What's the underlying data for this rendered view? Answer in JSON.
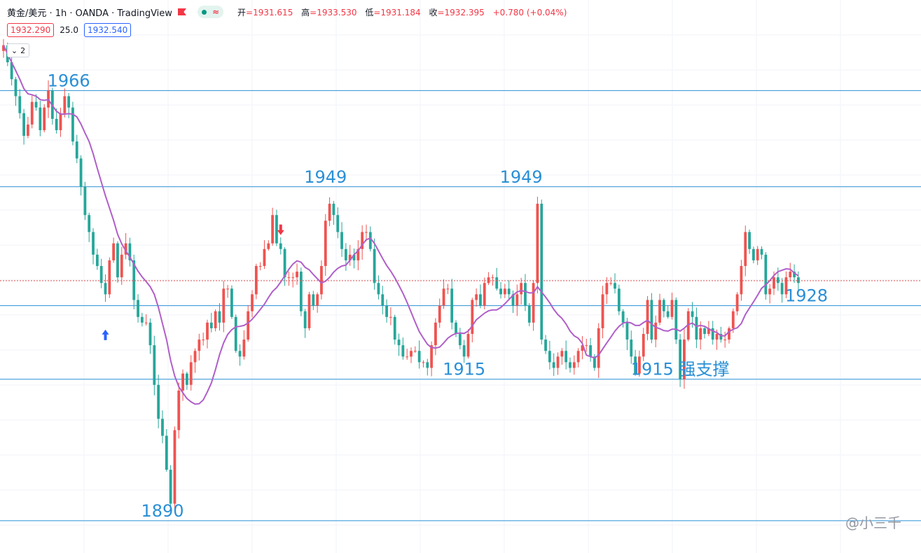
{
  "legend": {
    "symbol": "黄金/美元 · 1h · OANDA · TradingView",
    "wave_icon": "≈",
    "open_label": "开",
    "open": "=1931.615",
    "high_label": "高",
    "high": "=1933.530",
    "low_label": "低",
    "low": "=1931.184",
    "close_label": "收",
    "close": "=1932.395",
    "change": "+0.780 (+0.04%)"
  },
  "quote": {
    "sell": "1932.290",
    "spread": "25.0",
    "buy": "1932.540"
  },
  "indicator_toggle": "2",
  "watermark": "@小三千",
  "colors": {
    "up": "#ef5350",
    "down": "#26a69a",
    "ma": "#b05fc9",
    "level": "#2a8fd6",
    "last_price": "#e05050"
  },
  "chart_data": {
    "type": "candlestick",
    "timeframe": "1h",
    "y_range": [
      1888,
      1982
    ],
    "levels": [
      1966,
      1949,
      1928,
      1915,
      1890
    ],
    "level_labels": [
      {
        "text": "1966",
        "price": 1966,
        "bar": 16
      },
      {
        "text": "1949",
        "price": 1949,
        "bar": 79
      },
      {
        "text": "1949",
        "price": 1949,
        "bar": 127
      },
      {
        "text": "1928",
        "price": 1928,
        "bar": 197
      },
      {
        "text": "1915",
        "price": 1915,
        "bar": 113
      },
      {
        "text": "1915 强支撑",
        "price": 1915,
        "bar": 166
      },
      {
        "text": "1890",
        "price": 1890,
        "bar": 39
      }
    ],
    "last_price": 1932.4,
    "path": [
      1974,
      1971,
      1968,
      1965,
      1962,
      1958,
      1960,
      1964,
      1963,
      1959,
      1963,
      1966,
      1961,
      1959,
      1962,
      1965,
      1963,
      1957,
      1954,
      1949,
      1944,
      1941,
      1937,
      1935,
      1932,
      1930,
      1936,
      1939,
      1933,
      1937,
      1939,
      1936,
      1929,
      1926,
      1925,
      1925,
      1921,
      1914,
      1908,
      1905,
      1899,
      1893,
      1906,
      1913,
      1916,
      1914,
      1918,
      1920,
      1922,
      1922,
      1925,
      1924,
      1927,
      1925,
      1931,
      1931,
      1926,
      1920,
      1919,
      1922,
      1927,
      1930,
      1935,
      1935,
      1938,
      1939,
      1944,
      1939,
      1938,
      1933,
      1933,
      1933,
      1934,
      1927,
      1924,
      1930,
      1928,
      1930,
      1935,
      1943,
      1946,
      1944,
      1941,
      1938,
      1936,
      1937,
      1936,
      1938,
      1941,
      1941,
      1938,
      1932,
      1930,
      1928,
      1926,
      1926,
      1922,
      1921,
      1919,
      1919,
      1920,
      1920,
      1918,
      1918,
      1917,
      1921,
      1925,
      1928,
      1931,
      1931,
      1925,
      1923,
      1921,
      1919,
      1923,
      1929,
      1930,
      1928,
      1932,
      1933,
      1933,
      1931,
      1930,
      1931,
      1930,
      1928,
      1930,
      1932,
      1928,
      1925,
      1932,
      1946,
      1922,
      1920,
      1918,
      1917,
      1919,
      1920,
      1918,
      1917,
      1918,
      1920,
      1921,
      1921,
      1919,
      1917,
      1924,
      1930,
      1932,
      1932,
      1931,
      1927,
      1925,
      1922,
      1919,
      1916,
      1919,
      1923,
      1929,
      1922,
      1925,
      1929,
      1927,
      1926,
      1929,
      1922,
      1915,
      1922,
      1927,
      1926,
      1922,
      1924,
      1923,
      1924,
      1922,
      1923,
      1922,
      1922,
      1924,
      1927,
      1930,
      1935,
      1941,
      1938,
      1936,
      1938,
      1937,
      1930,
      1931,
      1933,
      1932,
      1930,
      1933,
      1934,
      1933,
      1932
    ]
  }
}
